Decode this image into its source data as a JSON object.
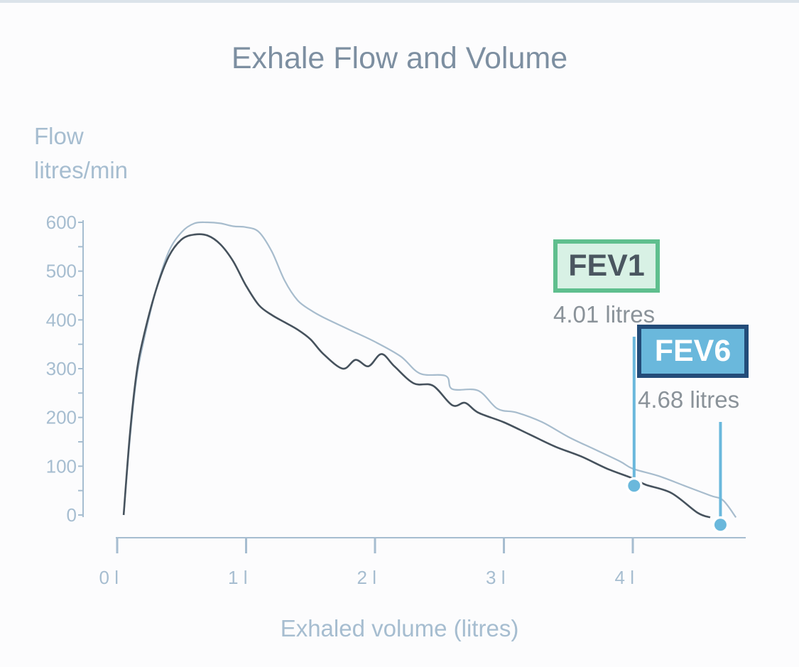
{
  "title": "Exhale Flow and Volume",
  "y_axis_label_line1": "Flow",
  "y_axis_label_line2": "litres/min",
  "x_axis_label": "Exhaled volume (litres)",
  "colors": {
    "reference_curve": "#a7bccd",
    "measured_curve": "#46525d",
    "axis": "#a6bdd0",
    "marker": "#6ab8dc",
    "fev1_border": "#5fbf8e",
    "fev6_border": "#234c79"
  },
  "markers": {
    "fev1": {
      "label": "FEV1",
      "value_text": "4.01 litres",
      "volume": 4.01,
      "flow": 60
    },
    "fev6": {
      "label": "FEV6",
      "value_text": "4.68 litres",
      "volume": 4.68,
      "flow": -20
    }
  },
  "chart_data": {
    "type": "line",
    "title": "Exhale Flow and Volume",
    "xlabel": "Exhaled volume (litres)",
    "ylabel": "Flow litres/min",
    "xlim": [
      0,
      4.8
    ],
    "ylim": [
      0,
      600
    ],
    "x_ticks": [
      0,
      1,
      2,
      3,
      4
    ],
    "x_tick_labels": [
      "0 l",
      "1 l",
      "2 l",
      "3 l",
      "4 l"
    ],
    "y_ticks": [
      0,
      100,
      200,
      300,
      400,
      500,
      600
    ],
    "y_tick_labels": [
      "0",
      "100",
      "200",
      "300",
      "400",
      "500",
      "600"
    ],
    "series": [
      {
        "role": "reference",
        "x": [
          0.05,
          0.1,
          0.15,
          0.2,
          0.3,
          0.4,
          0.5,
          0.6,
          0.7,
          0.8,
          0.9,
          1.0,
          1.1,
          1.2,
          1.3,
          1.4,
          1.5,
          1.6,
          1.8,
          2.0,
          2.2,
          2.35,
          2.55,
          2.6,
          2.8,
          2.95,
          3.1,
          3.3,
          3.5,
          3.7,
          3.9,
          4.0,
          4.2,
          4.4,
          4.6,
          4.7,
          4.8
        ],
        "y": [
          0,
          160,
          280,
          350,
          460,
          540,
          580,
          598,
          600,
          598,
          592,
          590,
          580,
          540,
          480,
          440,
          420,
          405,
          380,
          355,
          325,
          290,
          285,
          258,
          255,
          218,
          210,
          190,
          160,
          135,
          110,
          95,
          80,
          60,
          40,
          30,
          -5
        ]
      },
      {
        "role": "measured",
        "x": [
          0.05,
          0.1,
          0.15,
          0.2,
          0.3,
          0.4,
          0.5,
          0.6,
          0.7,
          0.8,
          0.9,
          1.0,
          1.1,
          1.2,
          1.3,
          1.4,
          1.5,
          1.6,
          1.75,
          1.85,
          1.95,
          2.05,
          2.15,
          2.3,
          2.45,
          2.6,
          2.7,
          2.8,
          3.0,
          3.2,
          3.4,
          3.6,
          3.8,
          4.0,
          4.1,
          4.3,
          4.5,
          4.6
        ],
        "y": [
          0,
          170,
          290,
          360,
          460,
          530,
          565,
          575,
          573,
          555,
          520,
          470,
          430,
          410,
          395,
          380,
          360,
          330,
          300,
          318,
          305,
          330,
          305,
          270,
          265,
          225,
          230,
          210,
          190,
          165,
          140,
          120,
          95,
          75,
          62,
          45,
          5,
          -5
        ]
      }
    ]
  }
}
